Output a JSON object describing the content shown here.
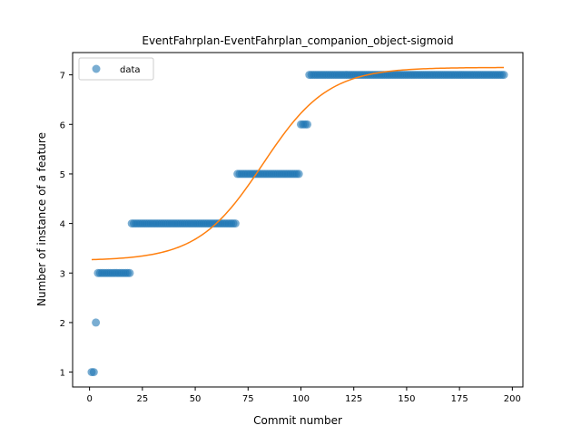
{
  "chart_data": {
    "type": "scatter",
    "title": "EventFahrplan-EventFahrplan_companion_object-sigmoid",
    "xlabel": "Commit number",
    "ylabel": "Number of instance of a feature",
    "xlim": [
      -8,
      205
    ],
    "ylim": [
      0.7,
      7.45
    ],
    "xticks": [
      0,
      25,
      50,
      75,
      100,
      125,
      150,
      175,
      200
    ],
    "yticks": [
      1,
      2,
      3,
      4,
      5,
      6,
      7
    ],
    "grid": false,
    "legend": {
      "position": "top-left",
      "entries": [
        "data"
      ]
    },
    "colors": {
      "data": "#1f77b4",
      "fit": "#ff7f0e"
    },
    "series": [
      {
        "name": "data",
        "kind": "scatter",
        "segments": [
          {
            "x_start": 1,
            "x_end": 2,
            "y": 1
          },
          {
            "x_start": 3,
            "x_end": 3,
            "y": 2
          },
          {
            "x_start": 4,
            "x_end": 19,
            "y": 3
          },
          {
            "x_start": 20,
            "x_end": 69,
            "y": 4
          },
          {
            "x_start": 70,
            "x_end": 99,
            "y": 5
          },
          {
            "x_start": 100,
            "x_end": 103,
            "y": 6
          },
          {
            "x_start": 104,
            "x_end": 196,
            "y": 7
          }
        ]
      },
      {
        "kind": "line",
        "function": "sigmoid",
        "params": {
          "L": 3.9,
          "k": 0.065,
          "x0": 82,
          "b": 3.25
        },
        "x_range": [
          1,
          196
        ]
      }
    ]
  }
}
